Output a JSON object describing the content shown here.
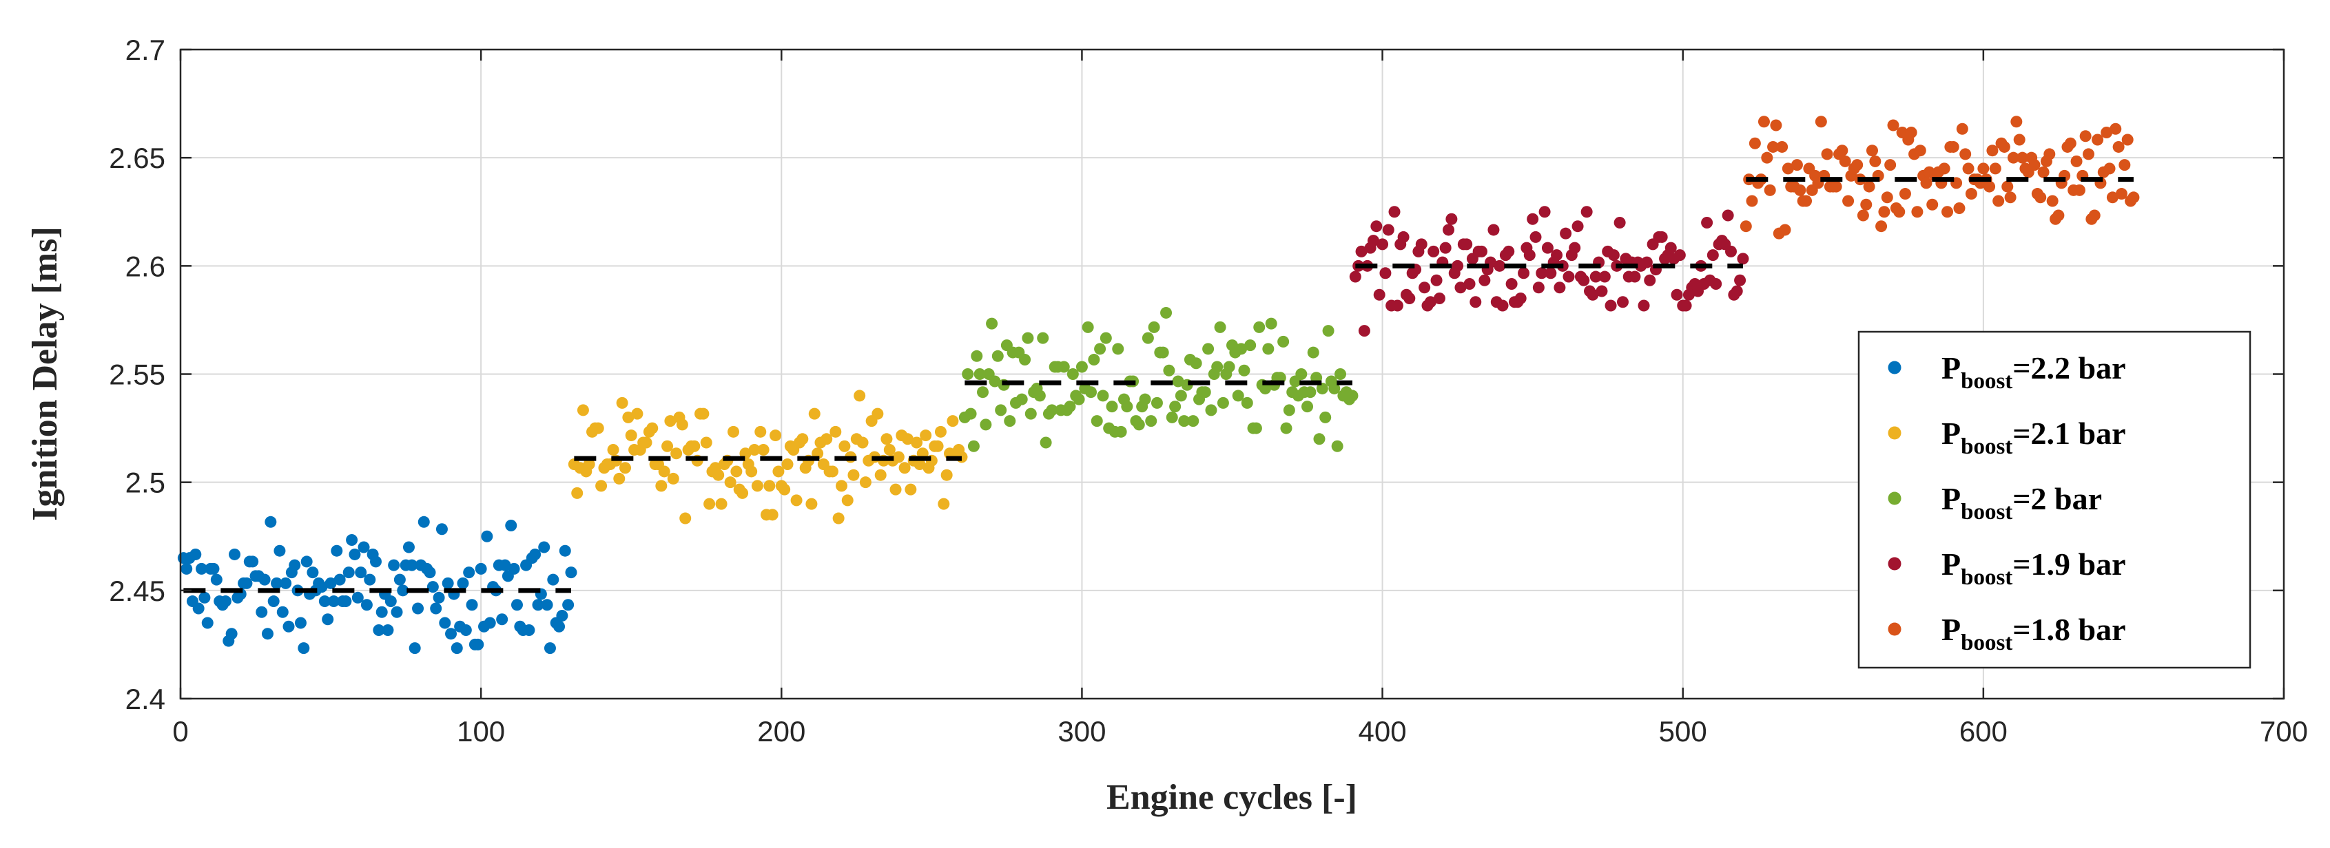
{
  "chart_data": {
    "type": "scatter",
    "title": "",
    "xlabel": "Engine cycles [-]",
    "ylabel": "Ignition Delay [ms]",
    "xlim": [
      0,
      700
    ],
    "ylim": [
      2.4,
      2.7
    ],
    "xticks": [
      0,
      100,
      200,
      300,
      400,
      500,
      600,
      700
    ],
    "yticks": [
      2.4,
      2.45,
      2.5,
      2.55,
      2.6,
      2.65,
      2.7
    ],
    "xtick_labels": [
      "0",
      "100",
      "200",
      "300",
      "400",
      "500",
      "600",
      "700"
    ],
    "ytick_labels": [
      "2.4",
      "2.45",
      "2.5",
      "2.55",
      "2.6",
      "2.65",
      "2.7"
    ],
    "grid": true,
    "legend_position": "right",
    "series": [
      {
        "label_main": "P",
        "label_sub": "boost",
        "label_suffix": "=2.2 bar",
        "color": "#0072BD",
        "x_start": 1,
        "x_end": 130,
        "mean": 2.45,
        "spread": 0.014,
        "min": 2.424,
        "max": 2.483
      },
      {
        "label_main": "P",
        "label_sub": "boost",
        "label_suffix": "=2.1 bar",
        "color": "#EDB120",
        "x_start": 131,
        "x_end": 260,
        "mean": 2.511,
        "spread": 0.012,
        "min": 2.483,
        "max": 2.541
      },
      {
        "label_main": "P",
        "label_sub": "boost",
        "label_suffix": "=2 bar",
        "color": "#77AC30",
        "x_start": 261,
        "x_end": 390,
        "mean": 2.546,
        "spread": 0.013,
        "min": 2.516,
        "max": 2.583
      },
      {
        "label_main": "P",
        "label_sub": "boost",
        "label_suffix": "=1.9 bar",
        "color": "#A2142F",
        "x_start": 391,
        "x_end": 520,
        "mean": 2.6,
        "spread": 0.012,
        "min": 2.566,
        "max": 2.625
      },
      {
        "label_main": "P",
        "label_sub": "boost",
        "label_suffix": "=1.8 bar",
        "color": "#D95319",
        "x_start": 521,
        "x_end": 650,
        "mean": 2.64,
        "spread": 0.012,
        "min": 2.608,
        "max": 2.666
      }
    ],
    "mean_line_color": "#000000"
  }
}
